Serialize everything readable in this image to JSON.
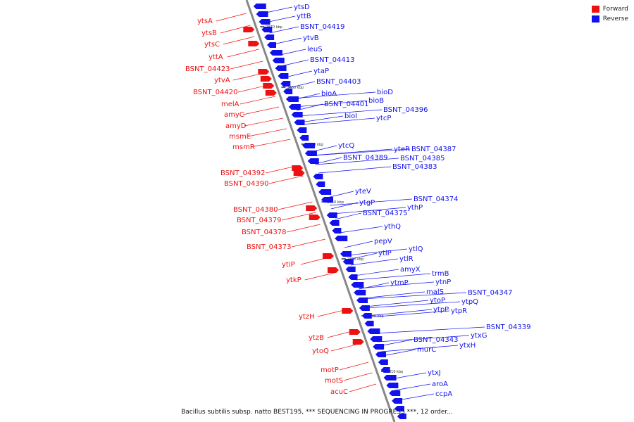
{
  "colors": {
    "forward": "#ee1111",
    "reverse": "#1111ee",
    "backbone": "#888888"
  },
  "legend": [
    {
      "label": "Forward",
      "color": "#ee1111"
    },
    {
      "label": "Reverse",
      "color": "#1111ee"
    }
  ],
  "caption": "Bacillus subtilis subsp. natto BEST195, *** SEQUENCING IN PROGRESS ***, 12 order...",
  "ticks": [
    "2870 kbp",
    "2860 kbp",
    "2850 kbp",
    "2840 kbp",
    "2830 kbp",
    "2820 kbp",
    "2810 kbp"
  ],
  "forward_genes": [
    "ytsA",
    "ytsB",
    "ytsC",
    "yttA",
    "BSNT_04423",
    "ytvA",
    "BSNT_04420",
    "melA",
    "amyC",
    "amyD",
    "msmE",
    "msmR",
    "BSNT_04392",
    "BSNT_04390",
    "BSNT_04380",
    "BSNT_04379",
    "BSNT_04378",
    "BSNT_04373",
    "ytiP",
    "ytkP",
    "ytzH",
    "ytzB",
    "ytoQ",
    "motP",
    "motS",
    "acuC"
  ],
  "reverse_genes": [
    "ytsD",
    "yttB",
    "BSNT_04419",
    "ytvB",
    "leuS",
    "BSNT_04413",
    "ytaP",
    "BSNT_04403",
    "bioA",
    "bioD",
    "BSNT_04401",
    "bioB",
    "bioI",
    "BSNT_04396",
    "ytcP",
    "ytcQ",
    "yteR",
    "BSNT_04387",
    "BSNT_04389",
    "BSNT_04385",
    "BSNT_04383",
    "yteV",
    "ytgP",
    "BSNT_04374",
    "BSNT_04375",
    "ythP",
    "ythQ",
    "pepV",
    "ytlP",
    "ytlQ",
    "ytlR",
    "amyX",
    "trmB",
    "ytmP",
    "ytnP",
    "malS",
    "BSNT_04347",
    "ytoP",
    "ytpQ",
    "ytpP",
    "ytpR",
    "BSNT_04339",
    "BSNT_04343",
    "ytxG",
    "murC",
    "ytxH",
    "ytxJ",
    "aroA",
    "ccpA"
  ]
}
